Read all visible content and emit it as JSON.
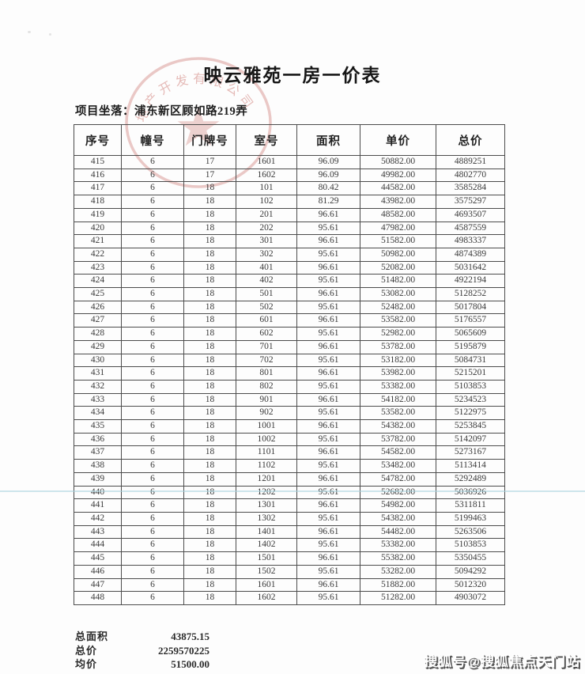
{
  "page": {
    "title": "映云雅苑一房一价表",
    "location_label": "项目坐落：",
    "location_value": "浦东新区顾如路219弄"
  },
  "stamp": {
    "arc_text": "地产开发有限公司"
  },
  "table": {
    "headers": [
      "序号",
      "幢号",
      "门牌号",
      "室号",
      "面积",
      "单价",
      "总价"
    ],
    "rows": [
      [
        "415",
        "6",
        "17",
        "1601",
        "96.09",
        "50882.00",
        "4889251"
      ],
      [
        "416",
        "6",
        "17",
        "1602",
        "96.09",
        "49982.00",
        "4802770"
      ],
      [
        "417",
        "6",
        "18",
        "101",
        "80.42",
        "44582.00",
        "3585284"
      ],
      [
        "418",
        "6",
        "18",
        "102",
        "81.29",
        "43982.00",
        "3575297"
      ],
      [
        "419",
        "6",
        "18",
        "201",
        "96.61",
        "48582.00",
        "4693507"
      ],
      [
        "420",
        "6",
        "18",
        "202",
        "95.61",
        "47982.00",
        "4587559"
      ],
      [
        "421",
        "6",
        "18",
        "301",
        "96.61",
        "51582.00",
        "4983337"
      ],
      [
        "422",
        "6",
        "18",
        "302",
        "95.61",
        "50982.00",
        "4874389"
      ],
      [
        "423",
        "6",
        "18",
        "401",
        "96.61",
        "52082.00",
        "5031642"
      ],
      [
        "424",
        "6",
        "18",
        "402",
        "95.61",
        "51482.00",
        "4922194"
      ],
      [
        "425",
        "6",
        "18",
        "501",
        "96.61",
        "53082.00",
        "5128252"
      ],
      [
        "426",
        "6",
        "18",
        "502",
        "95.61",
        "52482.00",
        "5017804"
      ],
      [
        "427",
        "6",
        "18",
        "601",
        "96.61",
        "53582.00",
        "5176557"
      ],
      [
        "428",
        "6",
        "18",
        "602",
        "95.61",
        "52982.00",
        "5065609"
      ],
      [
        "429",
        "6",
        "18",
        "701",
        "96.61",
        "53782.00",
        "5195879"
      ],
      [
        "430",
        "6",
        "18",
        "702",
        "95.61",
        "53182.00",
        "5084731"
      ],
      [
        "431",
        "6",
        "18",
        "801",
        "96.61",
        "53982.00",
        "5215201"
      ],
      [
        "432",
        "6",
        "18",
        "802",
        "95.61",
        "53382.00",
        "5103853"
      ],
      [
        "433",
        "6",
        "18",
        "901",
        "96.61",
        "54182.00",
        "5234523"
      ],
      [
        "434",
        "6",
        "18",
        "902",
        "95.61",
        "53582.00",
        "5122975"
      ],
      [
        "435",
        "6",
        "18",
        "1001",
        "96.61",
        "54382.00",
        "5253845"
      ],
      [
        "436",
        "6",
        "18",
        "1002",
        "95.61",
        "53782.00",
        "5142097"
      ],
      [
        "437",
        "6",
        "18",
        "1101",
        "96.61",
        "54582.00",
        "5273167"
      ],
      [
        "438",
        "6",
        "18",
        "1102",
        "95.61",
        "53482.00",
        "5113414"
      ],
      [
        "439",
        "6",
        "18",
        "1201",
        "96.61",
        "54782.00",
        "5292489"
      ],
      [
        "440",
        "6",
        "18",
        "1202",
        "95.61",
        "52682.00",
        "5036926"
      ],
      [
        "441",
        "6",
        "18",
        "1301",
        "96.61",
        "54982.00",
        "5311811"
      ],
      [
        "442",
        "6",
        "18",
        "1302",
        "95.61",
        "54382.00",
        "5199463"
      ],
      [
        "443",
        "6",
        "18",
        "1401",
        "96.61",
        "54482.00",
        "5263506"
      ],
      [
        "444",
        "6",
        "18",
        "1402",
        "95.61",
        "53382.00",
        "5103853"
      ],
      [
        "445",
        "6",
        "18",
        "1501",
        "96.61",
        "55382.00",
        "5350455"
      ],
      [
        "446",
        "6",
        "18",
        "1502",
        "95.61",
        "53282.00",
        "5094292"
      ],
      [
        "447",
        "6",
        "18",
        "1601",
        "96.61",
        "51882.00",
        "5012320"
      ],
      [
        "448",
        "6",
        "18",
        "1602",
        "95.61",
        "51282.00",
        "4903072"
      ]
    ]
  },
  "summary": {
    "items": [
      {
        "label": "总面积",
        "value": "43875.15"
      },
      {
        "label": "总价",
        "value": "2259570225"
      },
      {
        "label": "均价",
        "value": "51500.00"
      }
    ]
  },
  "watermark": {
    "text": "搜狐号@搜狐焦点天门站"
  },
  "colors": {
    "stamp": "#bf5048",
    "scan_line": "#a5d2dc",
    "table_border": "#4c4c4c"
  }
}
